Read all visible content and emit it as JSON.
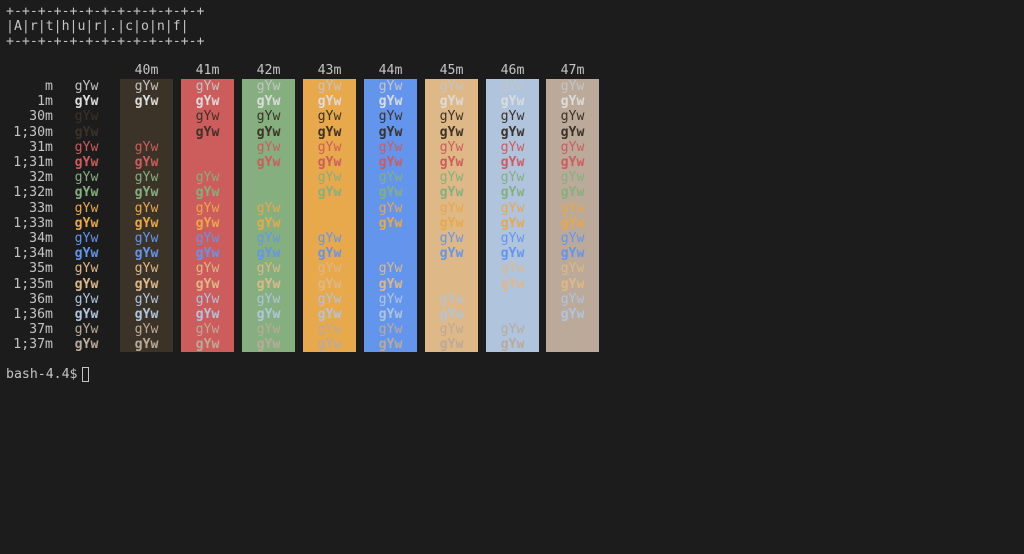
{
  "banner": {
    "top": "+-+-+-+-+-+-+-+-+-+-+-+-+",
    "middle": "|A|r|t|h|u|r|.|c|o|n|f|",
    "bottom": "+-+-+-+-+-+-+-+-+-+-+-+-+"
  },
  "sample_text": "gYw",
  "bg_headers": [
    "40m",
    "41m",
    "42m",
    "43m",
    "44m",
    "45m",
    "46m",
    "47m"
  ],
  "bg_colors": [
    "#3b3228",
    "#cd5c5c",
    "#86af80",
    "#e8a84c",
    "#6495ed",
    "#deb887",
    "#b0c4de",
    "#bbaa99"
  ],
  "rows": [
    {
      "label": "m",
      "fg": "#c4c4c4",
      "bold": false
    },
    {
      "label": "1m",
      "fg": "#dcdcdc",
      "bold": true
    },
    {
      "label": "30m",
      "fg": "#3b3228",
      "bold": false
    },
    {
      "label": "1;30m",
      "fg": "#3b3228",
      "bold": true
    },
    {
      "label": "31m",
      "fg": "#cd5c5c",
      "bold": false
    },
    {
      "label": "1;31m",
      "fg": "#cd5c5c",
      "bold": true
    },
    {
      "label": "32m",
      "fg": "#86af80",
      "bold": false
    },
    {
      "label": "1;32m",
      "fg": "#86af80",
      "bold": true
    },
    {
      "label": "33m",
      "fg": "#e8a84c",
      "bold": false
    },
    {
      "label": "1;33m",
      "fg": "#e8a84c",
      "bold": true
    },
    {
      "label": "34m",
      "fg": "#6495ed",
      "bold": false
    },
    {
      "label": "1;34m",
      "fg": "#6495ed",
      "bold": true
    },
    {
      "label": "35m",
      "fg": "#deb887",
      "bold": false
    },
    {
      "label": "1;35m",
      "fg": "#deb887",
      "bold": true
    },
    {
      "label": "36m",
      "fg": "#b0c4de",
      "bold": false
    },
    {
      "label": "1;36m",
      "fg": "#b0c4de",
      "bold": true
    },
    {
      "label": "37m",
      "fg": "#bbaa99",
      "bold": false
    },
    {
      "label": "1;37m",
      "fg": "#bbaa99",
      "bold": true
    }
  ],
  "prompt": "bash-4.4$",
  "background": "#1c1c1c",
  "text_color": "#c4c4c4"
}
